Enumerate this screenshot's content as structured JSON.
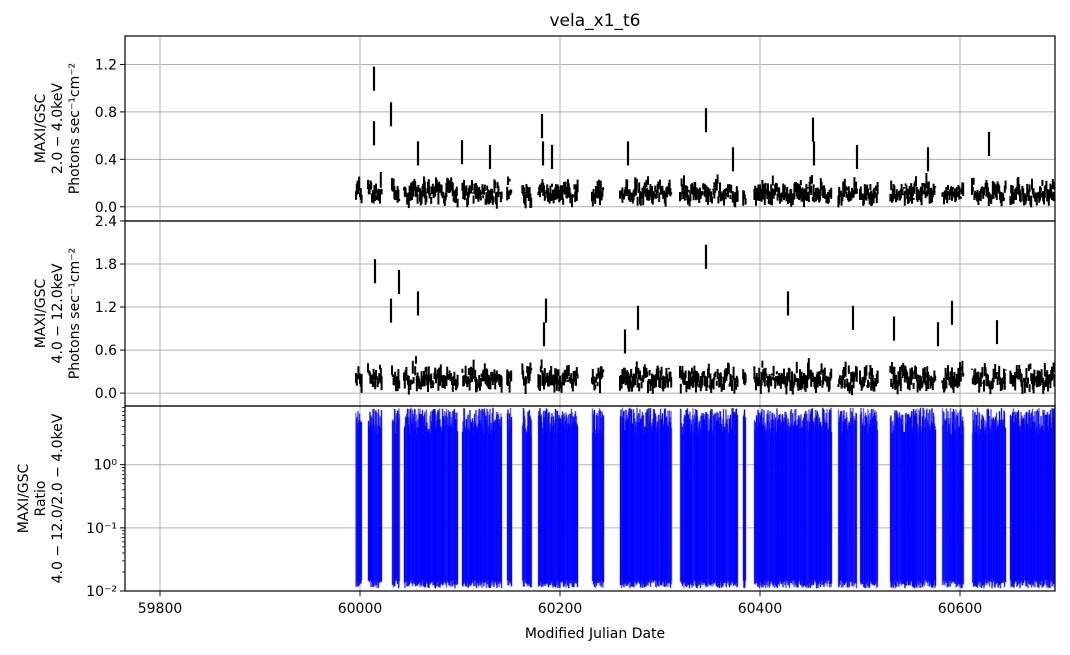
{
  "chart_data": {
    "type": "line",
    "title": "vela_x1_t6",
    "xlabel": "Modified Julian Date",
    "xlim": [
      59765,
      60695
    ],
    "xticks": [
      59800,
      60000,
      60200,
      60400,
      60600
    ],
    "xtick_labels": [
      "59800",
      "60000",
      "60200",
      "60400",
      "60600"
    ],
    "data_start_mjd": 59996,
    "grid": true,
    "panels": [
      {
        "id": "soft",
        "ylabel_lines": [
          "MAXI/GSC",
          "2.0 − 4.0keV",
          "Photons sec⁻¹cm⁻²"
        ],
        "ylim": [
          -0.12,
          1.44
        ],
        "yticks": [
          0.0,
          0.4,
          0.8,
          1.2
        ],
        "ytick_labels": [
          "0.0",
          "0.4",
          "0.8",
          "1.2"
        ],
        "color": "#000000",
        "scale": "linear",
        "flares": [
          [
            60014,
            1.08
          ],
          [
            60031,
            0.78
          ],
          [
            60014,
            0.62
          ],
          [
            60058,
            0.45
          ],
          [
            60102,
            0.46
          ],
          [
            60130,
            0.42
          ],
          [
            60182,
            0.68
          ],
          [
            60183,
            0.45
          ],
          [
            60192,
            0.42
          ],
          [
            60268,
            0.45
          ],
          [
            60346,
            0.73
          ],
          [
            60373,
            0.4
          ],
          [
            60453,
            0.65
          ],
          [
            60454,
            0.45
          ],
          [
            60497,
            0.42
          ],
          [
            60629,
            0.53
          ],
          [
            60568,
            0.4
          ]
        ]
      },
      {
        "id": "hard",
        "ylabel_lines": [
          "MAXI/GSC",
          "4.0 − 12.0keV",
          "Photons sec⁻¹cm⁻²"
        ],
        "ylim": [
          -0.18,
          2.4
        ],
        "yticks": [
          0.0,
          0.6,
          1.2,
          1.8,
          2.4
        ],
        "ytick_labels": [
          "0.0",
          "0.6",
          "1.2",
          "1.8",
          "2.4"
        ],
        "color": "#000000",
        "scale": "linear",
        "flares": [
          [
            60015,
            1.7
          ],
          [
            60039,
            1.55
          ],
          [
            60031,
            1.15
          ],
          [
            60058,
            1.25
          ],
          [
            60186,
            1.15
          ],
          [
            60184,
            0.82
          ],
          [
            60346,
            1.9
          ],
          [
            60428,
            1.25
          ],
          [
            60493,
            1.05
          ],
          [
            60534,
            0.9
          ],
          [
            60592,
            1.12
          ],
          [
            60578,
            0.82
          ],
          [
            60637,
            0.85
          ],
          [
            60278,
            1.05
          ],
          [
            60265,
            0.72
          ]
        ]
      },
      {
        "id": "ratio",
        "ylabel_lines": [
          "MAXI/GSC",
          "Ratio",
          "4.0 − 12.0/2.0 − 4.0keV"
        ],
        "ylim": [
          0.01,
          8.5
        ],
        "yticks": [
          0.01,
          0.1,
          1
        ],
        "ytick_labels": [
          "10⁻²",
          "10⁻¹",
          "10⁰"
        ],
        "color": "#0000ff",
        "scale": "log"
      }
    ],
    "data_gaps_mjd": [
      [
        60002,
        60008
      ],
      [
        60022,
        60032
      ],
      [
        60040,
        60044
      ],
      [
        60098,
        60102
      ],
      [
        60142,
        60147
      ],
      [
        60152,
        60162
      ],
      [
        60172,
        60178
      ],
      [
        60218,
        60232
      ],
      [
        60244,
        60260
      ],
      [
        60312,
        60320
      ],
      [
        60378,
        60383
      ],
      [
        60386,
        60394
      ],
      [
        60472,
        60478
      ],
      [
        60497,
        60500
      ],
      [
        60518,
        60530
      ],
      [
        60576,
        60582
      ],
      [
        60604,
        60612
      ],
      [
        60646,
        60650
      ]
    ]
  }
}
